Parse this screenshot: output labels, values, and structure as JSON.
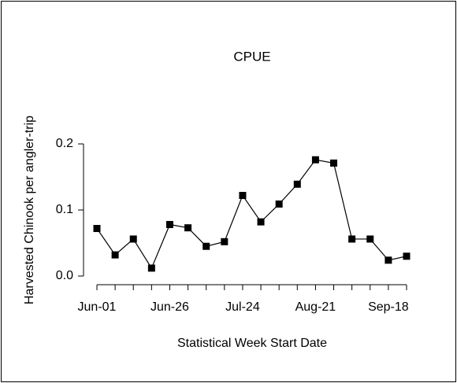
{
  "chart_data": {
    "type": "line",
    "title": "CPUE",
    "x_label": "Statistical Week Start Date",
    "y_label": "Harvested Chinook per angler-trip",
    "categories": [
      "Jun-01",
      null,
      null,
      null,
      "Jun-26",
      null,
      null,
      null,
      "Jul-24",
      null,
      null,
      null,
      "Aug-21",
      null,
      null,
      null,
      "Sep-18",
      null
    ],
    "series": [
      {
        "name": "CPUE",
        "color": "#000000",
        "values": [
          0.072,
          0.032,
          0.056,
          0.012,
          0.078,
          0.073,
          0.045,
          0.052,
          0.122,
          0.082,
          0.109,
          0.139,
          0.176,
          0.171,
          0.056,
          0.056,
          0.024,
          0.03
        ]
      }
    ],
    "ylim": [
      0,
      0.2
    ],
    "yticks": [
      {
        "value": 0,
        "label": "0.0"
      },
      0.1,
      0.2
    ]
  }
}
